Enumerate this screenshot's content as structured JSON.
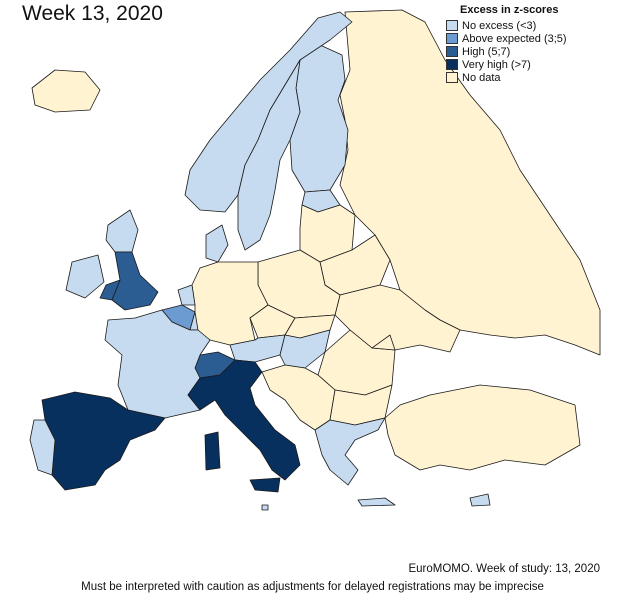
{
  "title": "Week 13, 2020",
  "legend": {
    "title": "Excess in z-scores",
    "items": [
      {
        "label": "No excess (<3)",
        "color": "#c6dbef"
      },
      {
        "label": "Above expected (3;5)",
        "color": "#6b9bd0"
      },
      {
        "label": "High (5;7)",
        "color": "#2b5c92"
      },
      {
        "label": "Very high (>7)",
        "color": "#08305e"
      },
      {
        "label": "No data",
        "color": "#fff3d1"
      }
    ]
  },
  "countries": [
    {
      "name": "Iceland",
      "category": "No data"
    },
    {
      "name": "Norway",
      "category": "No excess (<3)"
    },
    {
      "name": "Sweden",
      "category": "No excess (<3)"
    },
    {
      "name": "Finland",
      "category": "No excess (<3)"
    },
    {
      "name": "Denmark",
      "category": "No excess (<3)"
    },
    {
      "name": "Estonia",
      "category": "No excess (<3)"
    },
    {
      "name": "Ireland",
      "category": "No excess (<3)"
    },
    {
      "name": "Scotland",
      "category": "No excess (<3)"
    },
    {
      "name": "England",
      "category": "High (5;7)"
    },
    {
      "name": "Wales",
      "category": "High (5;7)"
    },
    {
      "name": "Netherlands",
      "category": "No excess (<3)"
    },
    {
      "name": "Belgium",
      "category": "Above expected (3;5)"
    },
    {
      "name": "Luxembourg",
      "category": "No excess (<3)"
    },
    {
      "name": "France",
      "category": "No excess (<3)"
    },
    {
      "name": "Switzerland",
      "category": "High (5;7)"
    },
    {
      "name": "Austria",
      "category": "No excess (<3)"
    },
    {
      "name": "Hungary",
      "category": "No excess (<3)"
    },
    {
      "name": "Portugal",
      "category": "No excess (<3)"
    },
    {
      "name": "Spain",
      "category": "Very high (>7)"
    },
    {
      "name": "Italy",
      "category": "Very high (>7)"
    },
    {
      "name": "Sardinia",
      "category": "Very high (>7)"
    },
    {
      "name": "Malta",
      "category": "No excess (<3)"
    },
    {
      "name": "Greece",
      "category": "No excess (<3)"
    },
    {
      "name": "Crete",
      "category": "No excess (<3)"
    },
    {
      "name": "Cyprus",
      "category": "No excess (<3)"
    },
    {
      "name": "Germany",
      "category": "No data"
    },
    {
      "name": "Poland",
      "category": "No data"
    },
    {
      "name": "Czechia",
      "category": "No data"
    },
    {
      "name": "Slovakia",
      "category": "No data"
    },
    {
      "name": "Baltics",
      "category": "No data"
    },
    {
      "name": "Belarus",
      "category": "No data"
    },
    {
      "name": "Ukraine",
      "category": "No data"
    },
    {
      "name": "Romania",
      "category": "No data"
    },
    {
      "name": "Bulgaria",
      "category": "No data"
    },
    {
      "name": "Balkans",
      "category": "No data"
    },
    {
      "name": "Russia",
      "category": "No data"
    },
    {
      "name": "Turkey",
      "category": "No data"
    },
    {
      "name": "Moldova",
      "category": "No data"
    }
  ],
  "source_note": "EuroMOMO. Week of study: 13, 2020",
  "caveat_note": "Must be interpreted with caution as adjustments for delayed registrations may be imprecise"
}
